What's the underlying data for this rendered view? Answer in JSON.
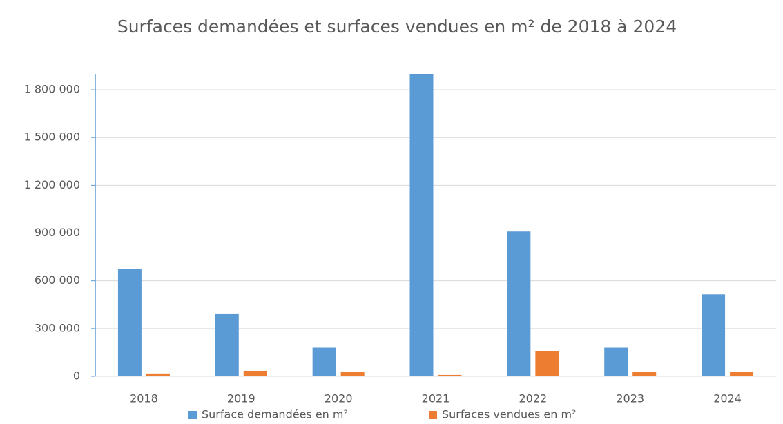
{
  "chart_data": {
    "type": "bar",
    "title": "Surfaces demandées et surfaces vendues en m² de 2018 à 2024",
    "categories": [
      "2018",
      "2019",
      "2020",
      "2021",
      "2022",
      "2023",
      "2024"
    ],
    "series": [
      {
        "name": "Surface demandées en m²",
        "color": "#5b9bd5",
        "values": [
          675000,
          395000,
          180000,
          1900000,
          910000,
          180000,
          515000
        ]
      },
      {
        "name": "Surfaces vendues en m²",
        "color": "#ed7d31",
        "values": [
          18000,
          35000,
          26000,
          9000,
          160000,
          26000,
          26000
        ]
      }
    ],
    "ylim": [
      0,
      1900000
    ],
    "yticks": [
      0,
      {
        "value": 300000,
        "label": "300 000"
      },
      {
        "value": 600000,
        "label": "600 000"
      },
      {
        "value": 900000,
        "label": "900 000"
      },
      {
        "value": 1200000,
        "label": "1 200 000"
      },
      {
        "value": 1500000,
        "label": "1 500 000"
      },
      {
        "value": 1800000,
        "label": "1 800 000"
      }
    ],
    "grid": true,
    "legend": "bottom"
  }
}
